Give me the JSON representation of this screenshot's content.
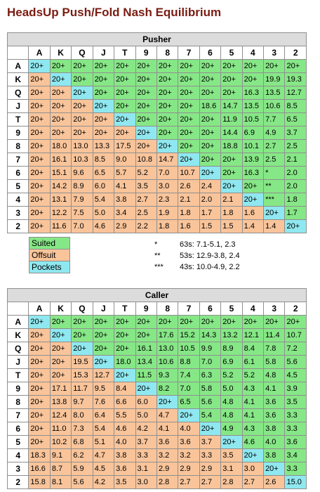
{
  "title": "HeadsUp Push/Fold Nash Equilibrium",
  "columns": [
    "A",
    "K",
    "Q",
    "J",
    "T",
    "9",
    "8",
    "7",
    "6",
    "5",
    "4",
    "3",
    "2"
  ],
  "pusher": {
    "caption": "Pusher",
    "rows": [
      {
        "label": "A",
        "cells": [
          "20+",
          "20+",
          "20+",
          "20+",
          "20+",
          "20+",
          "20+",
          "20+",
          "20+",
          "20+",
          "20+",
          "20+",
          "20+"
        ]
      },
      {
        "label": "K",
        "cells": [
          "20+",
          "20+",
          "20+",
          "20+",
          "20+",
          "20+",
          "20+",
          "20+",
          "20+",
          "20+",
          "20+",
          "19.9",
          "19.3"
        ]
      },
      {
        "label": "Q",
        "cells": [
          "20+",
          "20+",
          "20+",
          "20+",
          "20+",
          "20+",
          "20+",
          "20+",
          "20+",
          "20+",
          "16.3",
          "13.5",
          "12.7"
        ]
      },
      {
        "label": "J",
        "cells": [
          "20+",
          "20+",
          "20+",
          "20+",
          "20+",
          "20+",
          "20+",
          "20+",
          "18.6",
          "14.7",
          "13.5",
          "10.6",
          "8.5"
        ]
      },
      {
        "label": "T",
        "cells": [
          "20+",
          "20+",
          "20+",
          "20+",
          "20+",
          "20+",
          "20+",
          "20+",
          "20+",
          "11.9",
          "10.5",
          "7.7",
          "6.5"
        ]
      },
      {
        "label": "9",
        "cells": [
          "20+",
          "20+",
          "20+",
          "20+",
          "20+",
          "20+",
          "20+",
          "20+",
          "20+",
          "14.4",
          "6.9",
          "4.9",
          "3.7"
        ]
      },
      {
        "label": "8",
        "cells": [
          "20+",
          "18.0",
          "13.0",
          "13.3",
          "17.5",
          "20+",
          "20+",
          "20+",
          "20+",
          "18.8",
          "10.1",
          "2.7",
          "2.5"
        ]
      },
      {
        "label": "7",
        "cells": [
          "20+",
          "16.1",
          "10.3",
          "8.5",
          "9.0",
          "10.8",
          "14.7",
          "20+",
          "20+",
          "20+",
          "13.9",
          "2.5",
          "2.1"
        ]
      },
      {
        "label": "6",
        "cells": [
          "20+",
          "15.1",
          "9.6",
          "6.5",
          "5.7",
          "5.2",
          "7.0",
          "10.7",
          "20+",
          "20+",
          "16.3",
          "*",
          "2.0"
        ]
      },
      {
        "label": "5",
        "cells": [
          "20+",
          "14.2",
          "8.9",
          "6.0",
          "4.1",
          "3.5",
          "3.0",
          "2.6",
          "2.4",
          "20+",
          "20+",
          "**",
          "2.0"
        ]
      },
      {
        "label": "4",
        "cells": [
          "20+",
          "13.1",
          "7.9",
          "5.4",
          "3.8",
          "2.7",
          "2.3",
          "2.1",
          "2.0",
          "2.1",
          "20+",
          "***",
          "1.8"
        ]
      },
      {
        "label": "3",
        "cells": [
          "20+",
          "12.2",
          "7.5",
          "5.0",
          "3.4",
          "2.5",
          "1.9",
          "1.8",
          "1.7",
          "1.8",
          "1.6",
          "20+",
          "1.7"
        ]
      },
      {
        "label": "2",
        "cells": [
          "20+",
          "11.6",
          "7.0",
          "4.6",
          "2.9",
          "2.2",
          "1.8",
          "1.6",
          "1.5",
          "1.5",
          "1.4",
          "1.4",
          "20+"
        ]
      }
    ]
  },
  "legend": {
    "suited": "Suited",
    "offsuit": "Offsuit",
    "pockets": "Pockets"
  },
  "notes": [
    {
      "mark": "*",
      "text": "63s: 7.1-5.1, 2.3"
    },
    {
      "mark": "**",
      "text": "53s: 12.9-3.8, 2.4"
    },
    {
      "mark": "***",
      "text": "43s: 10.0-4.9, 2.2"
    }
  ],
  "caller": {
    "caption": "Caller",
    "rows": [
      {
        "label": "A",
        "cells": [
          "20+",
          "20+",
          "20+",
          "20+",
          "20+",
          "20+",
          "20+",
          "20+",
          "20+",
          "20+",
          "20+",
          "20+",
          "20+"
        ]
      },
      {
        "label": "K",
        "cells": [
          "20+",
          "20+",
          "20+",
          "20+",
          "20+",
          "20+",
          "17.6",
          "15.2",
          "14.3",
          "13.2",
          "12.1",
          "11.4",
          "10.7"
        ]
      },
      {
        "label": "Q",
        "cells": [
          "20+",
          "20+",
          "20+",
          "20+",
          "20+",
          "16.1",
          "13.0",
          "10.5",
          "9.9",
          "8.9",
          "8.4",
          "7.8",
          "7.2"
        ]
      },
      {
        "label": "J",
        "cells": [
          "20+",
          "20+",
          "19.5",
          "20+",
          "18.0",
          "13.4",
          "10.6",
          "8.8",
          "7.0",
          "6.9",
          "6.1",
          "5.8",
          "5.6"
        ]
      },
      {
        "label": "T",
        "cells": [
          "20+",
          "20+",
          "15.3",
          "12.7",
          "20+",
          "11.5",
          "9.3",
          "7.4",
          "6.3",
          "5.2",
          "5.2",
          "4.8",
          "4.5"
        ]
      },
      {
        "label": "9",
        "cells": [
          "20+",
          "17.1",
          "11.7",
          "9.5",
          "8.4",
          "20+",
          "8.2",
          "7.0",
          "5.8",
          "5.0",
          "4.3",
          "4.1",
          "3.9"
        ]
      },
      {
        "label": "8",
        "cells": [
          "20+",
          "13.8",
          "9.7",
          "7.6",
          "6.6",
          "6.0",
          "20+",
          "6.5",
          "5.6",
          "4.8",
          "4.1",
          "3.6",
          "3.5"
        ]
      },
      {
        "label": "7",
        "cells": [
          "20+",
          "12.4",
          "8.0",
          "6.4",
          "5.5",
          "5.0",
          "4.7",
          "20+",
          "5.4",
          "4.8",
          "4.1",
          "3.6",
          "3.3"
        ]
      },
      {
        "label": "6",
        "cells": [
          "20+",
          "11.0",
          "7.3",
          "5.4",
          "4.6",
          "4.2",
          "4.1",
          "4.0",
          "20+",
          "4.9",
          "4.3",
          "3.8",
          "3.3"
        ]
      },
      {
        "label": "5",
        "cells": [
          "20+",
          "10.2",
          "6.8",
          "5.1",
          "4.0",
          "3.7",
          "3.6",
          "3.6",
          "3.7",
          "20+",
          "4.6",
          "4.0",
          "3.6"
        ]
      },
      {
        "label": "4",
        "cells": [
          "18.3",
          "9.1",
          "6.2",
          "4.7",
          "3.8",
          "3.3",
          "3.2",
          "3.2",
          "3.3",
          "3.5",
          "20+",
          "3.8",
          "3.4"
        ]
      },
      {
        "label": "3",
        "cells": [
          "16.6",
          "8.7",
          "5.9",
          "4.5",
          "3.6",
          "3.1",
          "2.9",
          "2.9",
          "2.9",
          "3.1",
          "3.0",
          "20+",
          "3.3"
        ]
      },
      {
        "label": "2",
        "cells": [
          "15.8",
          "8.1",
          "5.6",
          "4.2",
          "3.5",
          "3.0",
          "2.8",
          "2.7",
          "2.7",
          "2.8",
          "2.7",
          "2.6",
          "15.0"
        ]
      }
    ]
  }
}
